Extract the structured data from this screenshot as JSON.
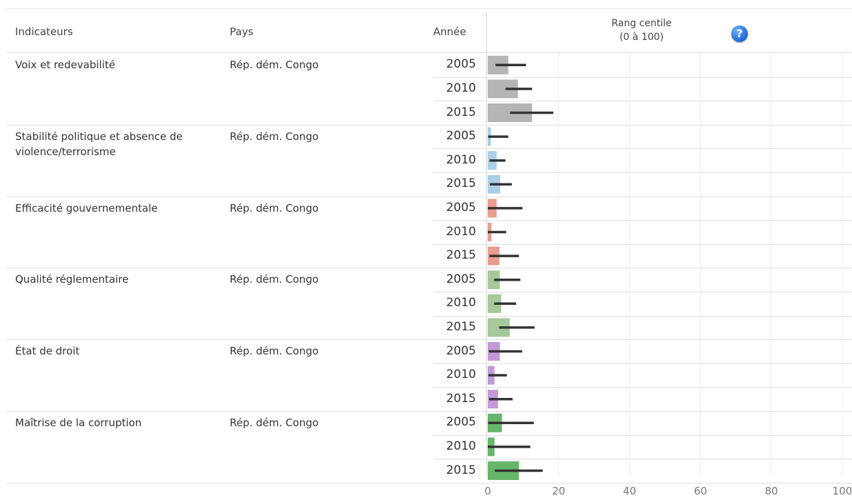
{
  "header": {
    "indicators": "Indicateurs",
    "country": "Pays",
    "year": "Année",
    "rank_line1": "Rang centile",
    "rank_line2": "(0 à 100)",
    "help": "?"
  },
  "chart_data": {
    "type": "bar",
    "xlabel": "",
    "ylabel": "",
    "xlim": [
      0,
      100
    ],
    "ticks": [
      "0",
      "20",
      "40",
      "60",
      "80",
      "100"
    ],
    "grid": true,
    "groups": [
      {
        "indicator": "Voix et redevabilité",
        "country": "Rép. dém. Congo",
        "color": "#b5b5b5",
        "rows": [
          {
            "year": "2005",
            "value": 5.8,
            "low": 2.2,
            "high": 10.8
          },
          {
            "year": "2010",
            "value": 8.5,
            "low": 5.0,
            "high": 12.5
          },
          {
            "year": "2015",
            "value": 12.5,
            "low": 6.3,
            "high": 18.5
          }
        ]
      },
      {
        "indicator": "Stabilité politique et absence de violence/terrorisme",
        "country": "Rép. dém. Congo",
        "color": "#a9cfe6",
        "rows": [
          {
            "year": "2005",
            "value": 0.9,
            "low": 0.1,
            "high": 5.8
          },
          {
            "year": "2010",
            "value": 2.5,
            "low": 0.5,
            "high": 5.0
          },
          {
            "year": "2015",
            "value": 3.5,
            "low": 0.6,
            "high": 6.8
          }
        ]
      },
      {
        "indicator": "Efficacité gouvernementale",
        "country": "Rép. dém. Congo",
        "color": "#e99d92",
        "rows": [
          {
            "year": "2005",
            "value": 2.5,
            "low": 0.0,
            "high": 9.8
          },
          {
            "year": "2010",
            "value": 1.0,
            "low": 0.0,
            "high": 5.2
          },
          {
            "year": "2015",
            "value": 3.3,
            "low": 0.5,
            "high": 8.8
          }
        ]
      },
      {
        "indicator": "Qualité réglementaire",
        "country": "Rép. dém. Congo",
        "color": "#a6c99a",
        "rows": [
          {
            "year": "2005",
            "value": 3.4,
            "low": 1.8,
            "high": 9.2
          },
          {
            "year": "2010",
            "value": 3.8,
            "low": 1.8,
            "high": 8.0
          },
          {
            "year": "2015",
            "value": 6.2,
            "low": 3.2,
            "high": 13.2
          }
        ]
      },
      {
        "indicator": "État de droit",
        "country": "Rép. dém. Congo",
        "color": "#c39ad6",
        "rows": [
          {
            "year": "2005",
            "value": 3.4,
            "low": 0.3,
            "high": 9.7
          },
          {
            "year": "2010",
            "value": 1.9,
            "low": 0.2,
            "high": 5.4
          },
          {
            "year": "2015",
            "value": 2.9,
            "low": 0.4,
            "high": 7.0
          }
        ]
      },
      {
        "indicator": "Maîtrise de la corruption",
        "country": "Rép. dém. Congo",
        "color": "#66b66a",
        "rows": [
          {
            "year": "2005",
            "value": 4.0,
            "low": 0.1,
            "high": 13.0
          },
          {
            "year": "2010",
            "value": 1.9,
            "low": 0.0,
            "high": 12.0
          },
          {
            "year": "2015",
            "value": 8.8,
            "low": 2.0,
            "high": 15.5
          }
        ]
      }
    ]
  }
}
